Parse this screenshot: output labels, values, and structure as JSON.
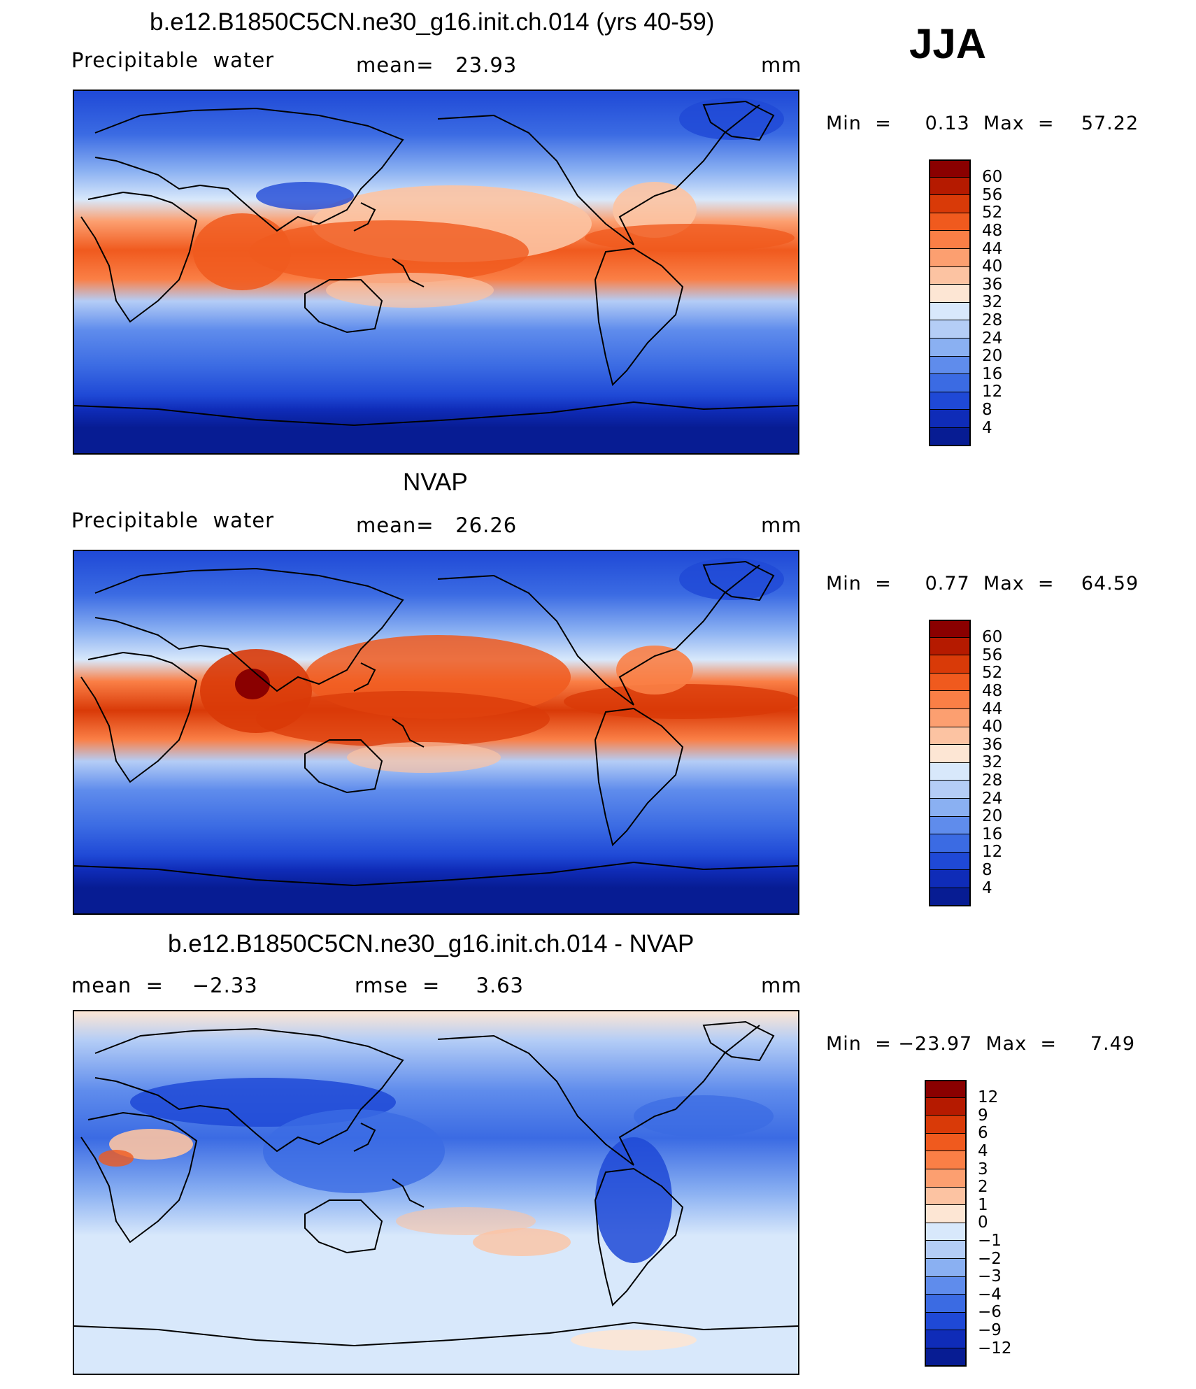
{
  "season": "JJA",
  "panels": [
    {
      "title": "b.e12.B1850C5CN.ne30_g16.init.ch.014 (yrs 40-59)",
      "left_label": "Precipitable  water",
      "center_label": "mean=   23.93",
      "units": "mm",
      "minmax": "Min  =     0.13  Max  =    57.22",
      "colorbar": {
        "colors": [
          "#8a0000",
          "#b51a00",
          "#d93a08",
          "#f05a1e",
          "#fa7f46",
          "#fc9f70",
          "#fcc3a2",
          "#fde6d4",
          "#d8e8fb",
          "#b4cdf6",
          "#8ab0f2",
          "#5f8cec",
          "#3b6be3",
          "#1f49d6",
          "#0f2cb8",
          "#071c93"
        ],
        "ticks": [
          "60",
          "56",
          "52",
          "48",
          "44",
          "40",
          "36",
          "32",
          "28",
          "24",
          "20",
          "16",
          "12",
          "8",
          "4"
        ]
      }
    },
    {
      "title": "NVAP",
      "left_label": "Precipitable  water",
      "center_label": "mean=   26.26",
      "units": "mm",
      "minmax": "Min  =     0.77  Max  =    64.59",
      "colorbar": {
        "colors": [
          "#8a0000",
          "#b51a00",
          "#d93a08",
          "#f05a1e",
          "#fa7f46",
          "#fc9f70",
          "#fcc3a2",
          "#fde6d4",
          "#d8e8fb",
          "#b4cdf6",
          "#8ab0f2",
          "#5f8cec",
          "#3b6be3",
          "#1f49d6",
          "#0f2cb8",
          "#071c93"
        ],
        "ticks": [
          "60",
          "56",
          "52",
          "48",
          "44",
          "40",
          "36",
          "32",
          "28",
          "24",
          "20",
          "16",
          "12",
          "8",
          "4"
        ]
      }
    },
    {
      "title": "b.e12.B1850C5CN.ne30_g16.init.ch.014 - NVAP",
      "left_label": "mean  =    −2.33",
      "center_label": "rmse  =     3.63",
      "units": "mm",
      "minmax": "Min  = −23.97  Max  =     7.49",
      "colorbar": {
        "colors": [
          "#8a0000",
          "#b51a00",
          "#d93a08",
          "#f05a1e",
          "#fa7f46",
          "#fc9f70",
          "#fcc3a2",
          "#fde6d4",
          "#d8e8fb",
          "#b4cdf6",
          "#8ab0f2",
          "#5f8cec",
          "#3b6be3",
          "#1f49d6",
          "#0f2cb8",
          "#071c93"
        ],
        "ticks": [
          "12",
          "9",
          "6",
          "4",
          "3",
          "2",
          "1",
          "0",
          "−1",
          "−2",
          "−3",
          "−4",
          "−6",
          "−9",
          "−12"
        ]
      }
    }
  ]
}
